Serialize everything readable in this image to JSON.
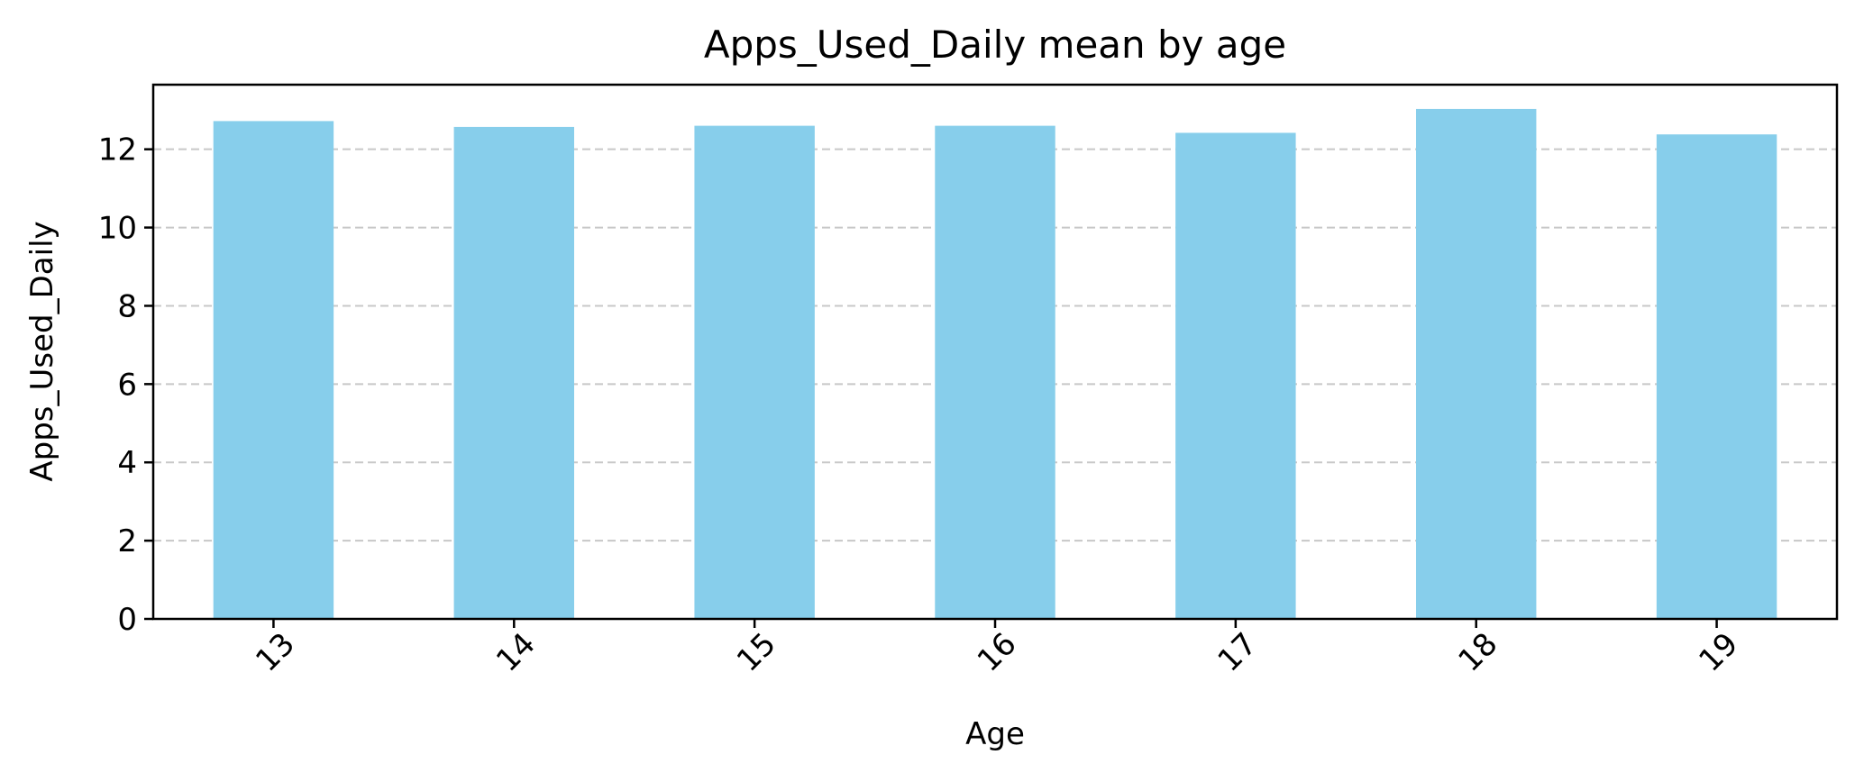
{
  "chart_data": {
    "type": "bar",
    "title": "Apps_Used_Daily mean by age",
    "xlabel": "Age",
    "ylabel": "Apps_Used_Daily",
    "categories": [
      "13",
      "14",
      "15",
      "16",
      "17",
      "18",
      "19"
    ],
    "values": [
      12.72,
      12.57,
      12.6,
      12.6,
      12.42,
      13.03,
      12.38
    ],
    "ylim": [
      0,
      13.65
    ],
    "yticks": [
      "0",
      "2",
      "4",
      "6",
      "8",
      "10",
      "12"
    ],
    "grid": "y-dashed",
    "legend": "none",
    "bar_color": "#87ceeb",
    "grid_color": "#c8c8c8"
  }
}
